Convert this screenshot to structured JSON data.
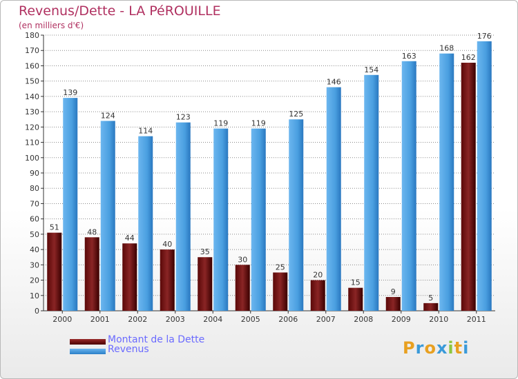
{
  "title": "Revenus/Dette - LA PéROUILLE",
  "subtitle": "(en milliers d'€)",
  "colors": {
    "dette": "#7a1a1a",
    "dette_dark": "#4a0000",
    "revenus": "#4a9fe0",
    "revenus_dark": "#2a6fb0",
    "title": "#b03060",
    "legend_text": "#6a6aff"
  },
  "legend": {
    "dette": "Montant de la Dette",
    "revenus": "Revenus"
  },
  "logo": {
    "text": "Proxiti",
    "letters": [
      {
        "ch": "P",
        "color": "#e8a020"
      },
      {
        "ch": "r",
        "color": "#3a9ad9"
      },
      {
        "ch": "o",
        "color": "#e8a020"
      },
      {
        "ch": "x",
        "color": "#3a9ad9"
      },
      {
        "ch": "i",
        "color": "#8cc63f"
      },
      {
        "ch": "t",
        "color": "#e8a020"
      },
      {
        "ch": "i",
        "color": "#3a9ad9"
      }
    ]
  },
  "chart_data": {
    "type": "bar",
    "categories": [
      "2000",
      "2001",
      "2002",
      "2003",
      "2004",
      "2005",
      "2006",
      "2007",
      "2008",
      "2009",
      "2010",
      "2011"
    ],
    "series": [
      {
        "name": "Montant de la Dette",
        "values": [
          51,
          48,
          44,
          40,
          35,
          30,
          25,
          20,
          15,
          9,
          5,
          162
        ]
      },
      {
        "name": "Revenus",
        "values": [
          139,
          124,
          114,
          123,
          119,
          119,
          125,
          146,
          154,
          163,
          168,
          176
        ]
      }
    ],
    "ylim": [
      0,
      180
    ],
    "ytick_step": 10,
    "grid": true,
    "legend_position": "bottom-left",
    "xlabel": "",
    "ylabel": ""
  }
}
